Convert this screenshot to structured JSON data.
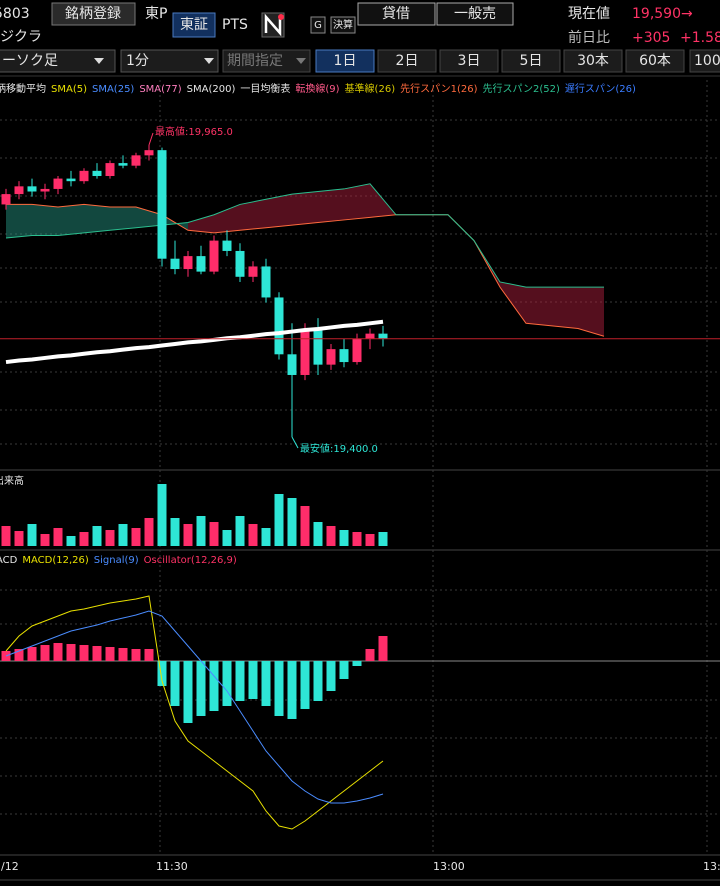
{
  "header": {
    "code": "5803",
    "register_button": "銘柄登録",
    "market": "東P",
    "exchange_tab": "東証",
    "pts_tab": "PTS",
    "g_badge": "G",
    "earnings_badge": "決算",
    "margin_buy_button": "貸借",
    "general_sell_button": "一般売",
    "price_label": "現在値",
    "price": "19,590→",
    "name": "ジクラ",
    "change_label": "前日比",
    "change": "+305",
    "change_pct": "+1.58"
  },
  "toolbar": {
    "chart_type": "ーソク足",
    "interval": "1分",
    "period": "期間指定",
    "tabs": [
      "1日",
      "2日",
      "3日",
      "5日",
      "30本",
      "60本",
      "100"
    ]
  },
  "legend": [
    {
      "text": "柄移動平均",
      "color": "#e6e6e6"
    },
    {
      "text": "SMA(5)",
      "color": "#e8e000"
    },
    {
      "text": "SMA(25)",
      "color": "#4a8cff"
    },
    {
      "text": "SMA(77)",
      "color": "#ff7fbf"
    },
    {
      "text": "SMA(200)",
      "color": "#e6e6e6"
    },
    {
      "text": "一目均衡表",
      "color": "#e6e6e6"
    },
    {
      "text": "転換線(9)",
      "color": "#ff5a8a"
    },
    {
      "text": "基準線(26)",
      "color": "#d6c800"
    },
    {
      "text": "先行スパン1(26)",
      "color": "#ff6a3d"
    },
    {
      "text": "先行スパン2(52)",
      "color": "#2bbf8f"
    },
    {
      "text": "遅行スパン(26)",
      "color": "#3a7cff"
    }
  ],
  "chart": {
    "candles": {
      "open": [
        19850,
        19870,
        19885,
        19875,
        19880,
        19900,
        19895,
        19915,
        19905,
        19930,
        19925,
        19945,
        19955,
        19745,
        19725,
        19750,
        19720,
        19780,
        19760,
        19710,
        19730,
        19670,
        19560,
        19520,
        19610,
        19540,
        19570,
        19545,
        19590,
        19600
      ],
      "high": [
        19880,
        19895,
        19900,
        19890,
        19905,
        19915,
        19920,
        19930,
        19935,
        19945,
        19950,
        19965,
        19960,
        19780,
        19760,
        19770,
        19790,
        19800,
        19775,
        19740,
        19745,
        19680,
        19620,
        19620,
        19630,
        19580,
        19590,
        19600,
        19610,
        19615
      ],
      "low": [
        19840,
        19860,
        19865,
        19860,
        19870,
        19885,
        19890,
        19900,
        19900,
        19920,
        19920,
        19935,
        19730,
        19715,
        19710,
        19715,
        19715,
        19750,
        19700,
        19700,
        19660,
        19550,
        19400,
        19510,
        19520,
        19530,
        19535,
        19540,
        19570,
        19575
      ],
      "close": [
        19870,
        19885,
        19875,
        19880,
        19900,
        19895,
        19915,
        19905,
        19930,
        19925,
        19945,
        19955,
        19745,
        19725,
        19750,
        19720,
        19780,
        19760,
        19710,
        19730,
        19670,
        19560,
        19520,
        19610,
        19540,
        19570,
        19545,
        19590,
        19600,
        19590
      ]
    },
    "sma200": [
      19545,
      19548,
      19550,
      19553,
      19556,
      19558,
      19561,
      19564,
      19566,
      19569,
      19572,
      19574,
      19577,
      19580,
      19583,
      19585,
      19588,
      19591,
      19593,
      19596,
      19599,
      19601,
      19604,
      19607,
      19609,
      19612,
      19615,
      19617,
      19620,
      19623
    ],
    "ichimoku": {
      "span1": [
        19850,
        19850,
        19845,
        19850,
        19845,
        19845,
        19830,
        19800,
        19795,
        19800,
        19805,
        19810,
        19815,
        19820,
        19825,
        19830,
        19830,
        19830,
        19780,
        19690,
        19620,
        19615,
        19610,
        19595
      ],
      "span2": [
        19785,
        19790,
        19790,
        19795,
        19800,
        19805,
        19810,
        19815,
        19830,
        19850,
        19860,
        19870,
        19875,
        19880,
        19890,
        19830,
        19830,
        19830,
        19780,
        19700,
        19690,
        19690,
        19690,
        19690
      ]
    },
    "high_label": "最高値:19,965.0",
    "low_label": "最安値:19,400.0",
    "volume_label": "出来高",
    "volume": [
      20,
      15,
      22,
      12,
      18,
      10,
      14,
      20,
      16,
      22,
      18,
      28,
      62,
      28,
      22,
      30,
      24,
      16,
      30,
      22,
      18,
      52,
      48,
      40,
      24,
      20,
      16,
      14,
      12,
      14
    ],
    "macd_legend": [
      {
        "text": "ACD",
        "color": "#e6e6e6"
      },
      {
        "text": "MACD(12,26)",
        "color": "#e8e000"
      },
      {
        "text": "Signal(9)",
        "color": "#4a8cff"
      },
      {
        "text": "Oscillator(12,26,9)",
        "color": "#ff3366"
      }
    ],
    "macd": {
      "macd": [
        10,
        25,
        35,
        40,
        45,
        50,
        52,
        55,
        58,
        60,
        62,
        65,
        -20,
        -60,
        -80,
        -90,
        -100,
        -110,
        -120,
        -130,
        -150,
        -165,
        -168,
        -160,
        -150,
        -140,
        -130,
        -120,
        -110,
        -100
      ],
      "signal": [
        5,
        10,
        15,
        20,
        25,
        30,
        33,
        36,
        40,
        43,
        46,
        50,
        45,
        30,
        15,
        0,
        -15,
        -30,
        -50,
        -70,
        -90,
        -105,
        -120,
        -130,
        -138,
        -142,
        -142,
        -140,
        -137,
        -133
      ],
      "histogram": [
        10,
        12,
        14,
        16,
        18,
        17,
        16,
        15,
        14,
        13,
        12,
        12,
        -25,
        -45,
        -62,
        -55,
        -50,
        -45,
        -40,
        -38,
        -45,
        -55,
        -58,
        -48,
        -40,
        -30,
        -18,
        -5,
        12,
        25
      ]
    },
    "x_labels": [
      "1/12",
      "11:30",
      "13:00",
      "13:"
    ]
  }
}
